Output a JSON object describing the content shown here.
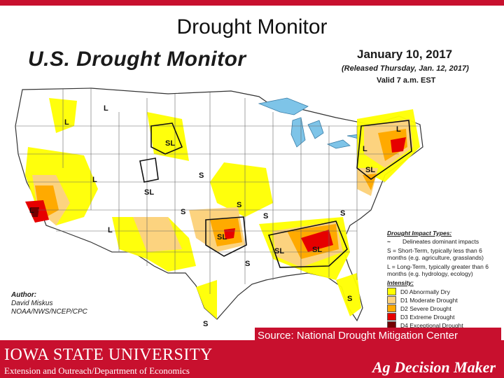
{
  "slide": {
    "title": "Drought Monitor"
  },
  "map": {
    "title": "U.S. Drought Monitor",
    "date": "January 10, 2017",
    "released": "(Released Thursday, Jan. 12, 2017)",
    "valid": "Valid 7 a.m. EST",
    "author_label": "Author:",
    "author_name": "David Miskus",
    "author_org": "NOAA/NWS/NCEP/CPC",
    "labels": {
      "l": "L",
      "sl": "SL",
      "s": "S"
    },
    "legend": {
      "impact_heading": "Drought Impact Types:",
      "impact_items": [
        {
          "symbol": "~",
          "text": "Delineates dominant impacts"
        },
        {
          "symbol": "",
          "text": "S = Short-Term, typically less than 6 months (e.g. agriculture, grasslands)"
        },
        {
          "symbol": "",
          "text": "L = Long-Term, typically greater than 6 months (e.g. hydrology, ecology)"
        }
      ],
      "intensity_heading": "Intensity:",
      "intensity_items": [
        {
          "label": "D0 Abnormally Dry",
          "color": "#ffff00"
        },
        {
          "label": "D1 Moderate Drought",
          "color": "#fcd37f"
        },
        {
          "label": "D2 Severe Drought",
          "color": "#ffaa00"
        },
        {
          "label": "D3 Extreme Drought",
          "color": "#e60000"
        },
        {
          "label": "D4 Exceptional Drought",
          "color": "#730000"
        }
      ]
    }
  },
  "footer": {
    "university": "IOWA STATE UNIVERSITY",
    "extension": "Extension and Outreach/Department of Economics",
    "source": "Source: National Drought Mitigation Center",
    "brand": "Ag Decision Maker",
    "color": "#c8102e"
  }
}
